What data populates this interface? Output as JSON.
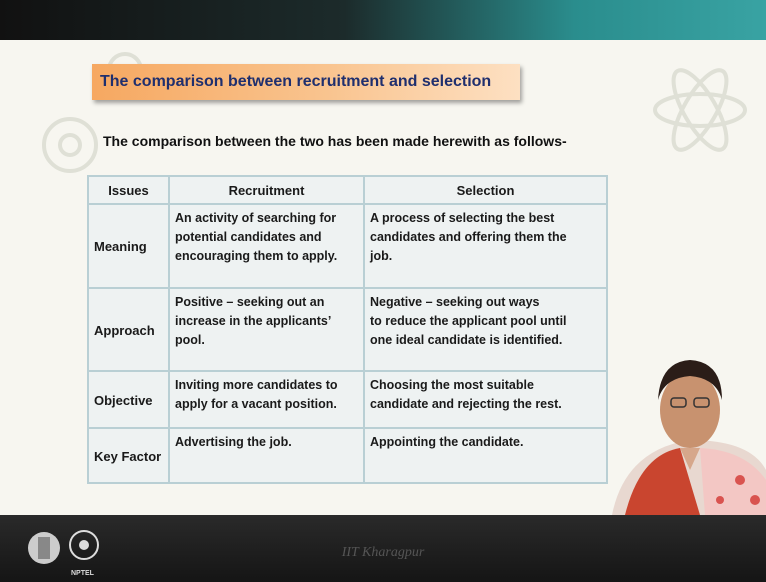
{
  "header": {
    "title": "The comparison between recruitment and selection"
  },
  "intro": "The comparison between the two has been made herewith as follows-",
  "table": {
    "columns": [
      "Issues",
      "Recruitment",
      "Selection"
    ],
    "rows": [
      [
        "Meaning",
        [
          "An activity of searching for",
          "potential candidates and",
          "encouraging them to apply."
        ],
        [
          "A process of selecting the best",
          "candidates and offering them the",
          "job."
        ]
      ],
      [
        "Approach",
        [
          "Positive – seeking out an",
          "increase in the applicants’",
          "pool."
        ],
        [
          "Negative – seeking out ways",
          "to reduce the applicant pool until",
          "one ideal candidate is identified."
        ]
      ],
      [
        "Objective",
        [
          "Inviting more candidates to",
          "apply for a vacant position."
        ],
        [
          "Choosing the most suitable",
          "candidate and rejecting the rest."
        ]
      ],
      [
        "Key Factor",
        [
          "Advertising the job."
        ],
        [
          "Appointing the candidate."
        ]
      ]
    ]
  },
  "footer": {
    "logo_label": "NPTEL",
    "institute": "IIT Kharagpur"
  }
}
